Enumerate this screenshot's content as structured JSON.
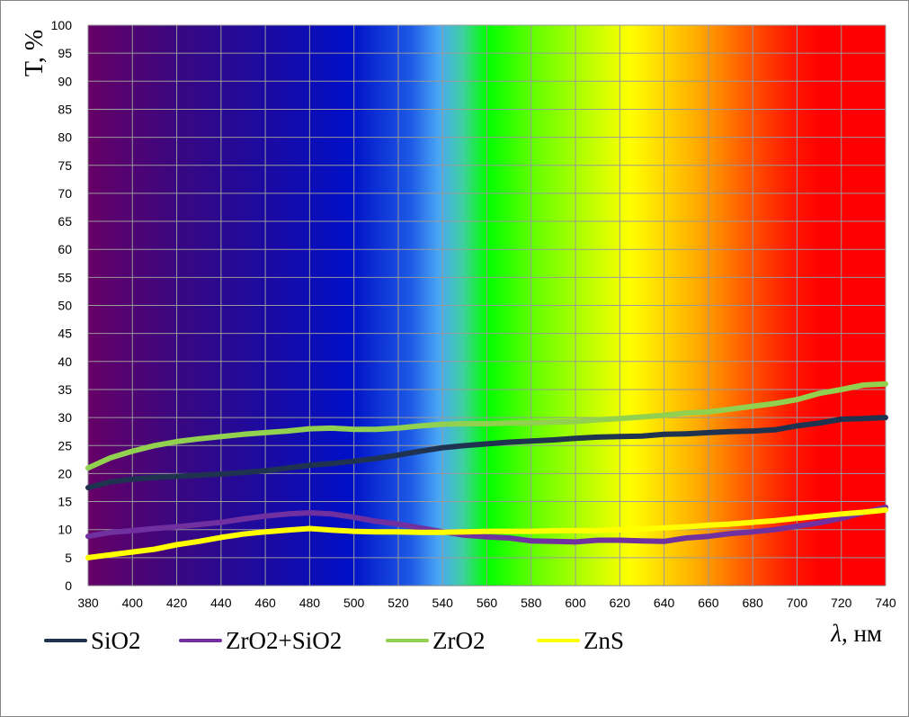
{
  "chart_data": {
    "type": "line",
    "ylabel": "T, %",
    "xlabel_symbol": "λ",
    "xlabel_unit": ", нм",
    "xlim": [
      380,
      740
    ],
    "ylim": [
      0,
      100
    ],
    "x_ticks": [
      380,
      400,
      420,
      440,
      460,
      480,
      500,
      520,
      540,
      560,
      580,
      600,
      620,
      640,
      660,
      680,
      700,
      720,
      740
    ],
    "y_ticks": [
      0,
      5,
      10,
      15,
      20,
      25,
      30,
      35,
      40,
      45,
      50,
      55,
      60,
      65,
      70,
      75,
      80,
      85,
      90,
      95,
      100
    ],
    "grid": true,
    "legend_position": "bottom",
    "background": "visible spectrum color gradient",
    "x": [
      380,
      390,
      400,
      410,
      420,
      430,
      440,
      450,
      460,
      470,
      480,
      490,
      500,
      510,
      520,
      530,
      540,
      550,
      560,
      570,
      580,
      590,
      600,
      610,
      620,
      630,
      640,
      650,
      660,
      670,
      680,
      690,
      700,
      710,
      720,
      730,
      740
    ],
    "series": [
      {
        "name": "SiO2",
        "color": "#1f3350",
        "values": [
          17.5,
          18.5,
          19.0,
          19.3,
          19.5,
          19.7,
          19.9,
          20.2,
          20.5,
          21.0,
          21.5,
          21.8,
          22.2,
          22.7,
          23.3,
          24.0,
          24.6,
          25.0,
          25.3,
          25.6,
          25.8,
          26.0,
          26.3,
          26.5,
          26.6,
          26.7,
          27.0,
          27.1,
          27.3,
          27.5,
          27.6,
          27.8,
          28.5,
          29.0,
          29.7,
          29.8,
          30.0
        ]
      },
      {
        "name": "ZrO2+SiO2",
        "color": "#7030a0",
        "values": [
          8.8,
          9.5,
          9.8,
          10.2,
          10.5,
          10.9,
          11.3,
          11.9,
          12.4,
          12.8,
          13.0,
          12.8,
          12.2,
          11.5,
          11.0,
          10.3,
          9.6,
          9.0,
          8.7,
          8.5,
          8.0,
          7.9,
          7.8,
          8.1,
          8.1,
          8.0,
          7.9,
          8.5,
          8.8,
          9.3,
          9.6,
          10.0,
          10.6,
          11.2,
          12.0,
          13.0,
          14.0
        ]
      },
      {
        "name": "ZrO2",
        "color": "#92d050",
        "values": [
          21.0,
          22.8,
          24.0,
          25.0,
          25.7,
          26.2,
          26.6,
          27.0,
          27.3,
          27.6,
          28.0,
          28.1,
          27.9,
          27.9,
          28.1,
          28.5,
          28.8,
          28.9,
          28.9,
          29.0,
          29.0,
          29.2,
          29.3,
          29.6,
          29.8,
          30.1,
          30.4,
          30.8,
          31.0,
          31.5,
          32.0,
          32.5,
          33.2,
          34.3,
          35.0,
          35.8,
          36.0
        ]
      },
      {
        "name": "ZnS",
        "color": "#ffff00",
        "values": [
          5.0,
          5.5,
          6.0,
          6.5,
          7.3,
          7.9,
          8.6,
          9.2,
          9.6,
          9.9,
          10.2,
          9.9,
          9.7,
          9.6,
          9.6,
          9.5,
          9.5,
          9.6,
          9.7,
          9.7,
          9.7,
          9.8,
          9.8,
          9.8,
          10.0,
          10.1,
          10.3,
          10.5,
          10.8,
          11.0,
          11.3,
          11.6,
          12.0,
          12.4,
          12.8,
          13.1,
          13.5
        ]
      }
    ]
  }
}
